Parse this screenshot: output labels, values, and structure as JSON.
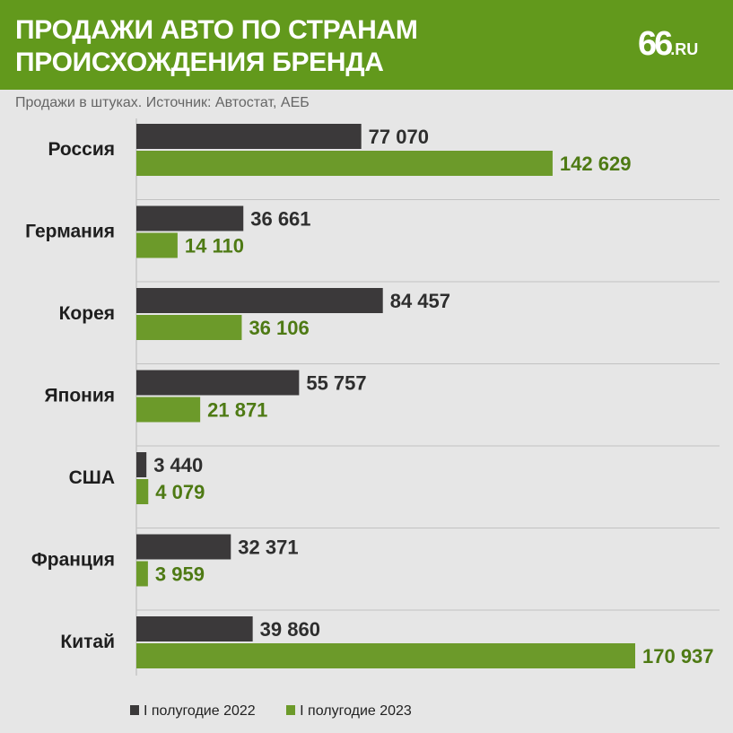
{
  "header": {
    "title_line1": "ПРОДАЖИ АВТО ПО СТРАНАМ",
    "title_line2": "ПРОИСХОЖДЕНИЯ БРЕНДА",
    "logo_number": "66",
    "logo_domain": ".RU"
  },
  "subtitle": "Продажи в штуках. Источник: Автостат, АЕБ",
  "colors": {
    "header_bg": "#62991c",
    "series_2022": "#3b393a",
    "series_2023": "#6c9a2a",
    "label_2023": "#4e7a14",
    "background": "#e6e6e6"
  },
  "chart_data": {
    "type": "bar",
    "orientation": "horizontal",
    "categories": [
      "Россия",
      "Германия",
      "Корея",
      "Япония",
      "США",
      "Франция",
      "Китай"
    ],
    "series": [
      {
        "name": "I полугодие 2022",
        "values": [
          77070,
          36661,
          84457,
          55757,
          3440,
          32371,
          39860
        ],
        "labels": [
          "77 070",
          "36 661",
          "84 457",
          "55 757",
          "3 440",
          "32 371",
          "39 860"
        ]
      },
      {
        "name": "I полугодие 2023",
        "values": [
          142629,
          14110,
          36106,
          21871,
          4079,
          3959,
          170937
        ],
        "labels": [
          "142 629",
          "14 110",
          "36 106",
          "21 871",
          "4 079",
          "3 959",
          "170 937"
        ]
      }
    ],
    "xlim": [
      0,
      170937
    ],
    "grid": "horizontal separators between categories",
    "legend_position": "bottom-left"
  }
}
